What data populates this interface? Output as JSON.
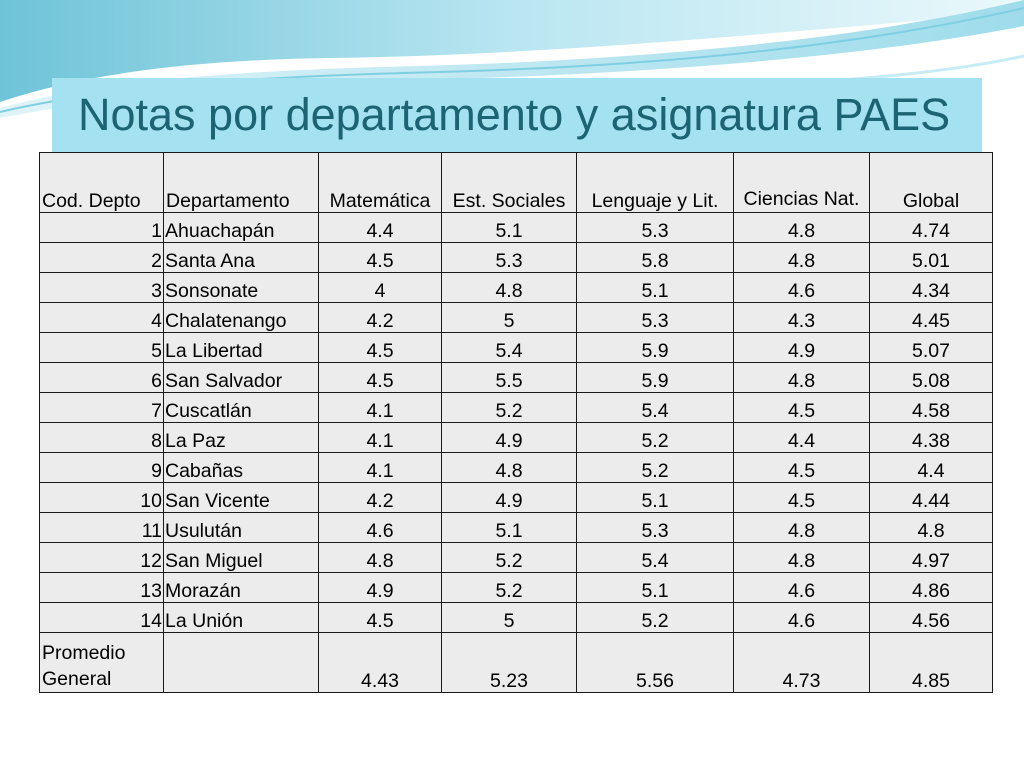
{
  "slide": {
    "title": "Notas por departamento y asignatura PAES"
  },
  "table": {
    "headers": [
      "Cod. Depto",
      "Departamento",
      "Matemática",
      "Est. Sociales",
      "Lenguaje y Lit.",
      "Ciencias Nat.",
      "Global"
    ],
    "rows": [
      [
        "1",
        "Ahuachapán",
        "4.4",
        "5.1",
        "5.3",
        "4.8",
        "4.74"
      ],
      [
        "2",
        "Santa Ana",
        "4.5",
        "5.3",
        "5.8",
        "4.8",
        "5.01"
      ],
      [
        "3",
        "Sonsonate",
        "4",
        "4.8",
        "5.1",
        "4.6",
        "4.34"
      ],
      [
        "4",
        "Chalatenango",
        "4.2",
        "5",
        "5.3",
        "4.3",
        "4.45"
      ],
      [
        "5",
        "La Libertad",
        "4.5",
        "5.4",
        "5.9",
        "4.9",
        "5.07"
      ],
      [
        "6",
        "San Salvador",
        "4.5",
        "5.5",
        "5.9",
        "4.8",
        "5.08"
      ],
      [
        "7",
        "Cuscatlán",
        "4.1",
        "5.2",
        "5.4",
        "4.5",
        "4.58"
      ],
      [
        "8",
        "La Paz",
        "4.1",
        "4.9",
        "5.2",
        "4.4",
        "4.38"
      ],
      [
        "9",
        "Cabañas",
        "4.1",
        "4.8",
        "5.2",
        "4.5",
        "4.4"
      ],
      [
        "10",
        "San Vicente",
        "4.2",
        "4.9",
        "5.1",
        "4.5",
        "4.44"
      ],
      [
        "11",
        "Usulután",
        "4.6",
        "5.1",
        "5.3",
        "4.8",
        "4.8"
      ],
      [
        "12",
        "San Miguel",
        "4.8",
        "5.2",
        "5.4",
        "4.8",
        "4.97"
      ],
      [
        "13",
        "Morazán",
        "4.9",
        "5.2",
        "5.1",
        "4.6",
        "4.86"
      ],
      [
        "14",
        "La Unión",
        "4.5",
        "5",
        "5.2",
        "4.6",
        "4.56"
      ]
    ],
    "footer": {
      "label": "Promedio General",
      "dept": "",
      "values": [
        "4.43",
        "5.23",
        "5.56",
        "4.73",
        "4.85"
      ]
    }
  },
  "colors": {
    "title_text": "#1c6373",
    "title_band": "#a4e1f1",
    "table_fill": "#ececec",
    "border": "#1a1a1a"
  }
}
